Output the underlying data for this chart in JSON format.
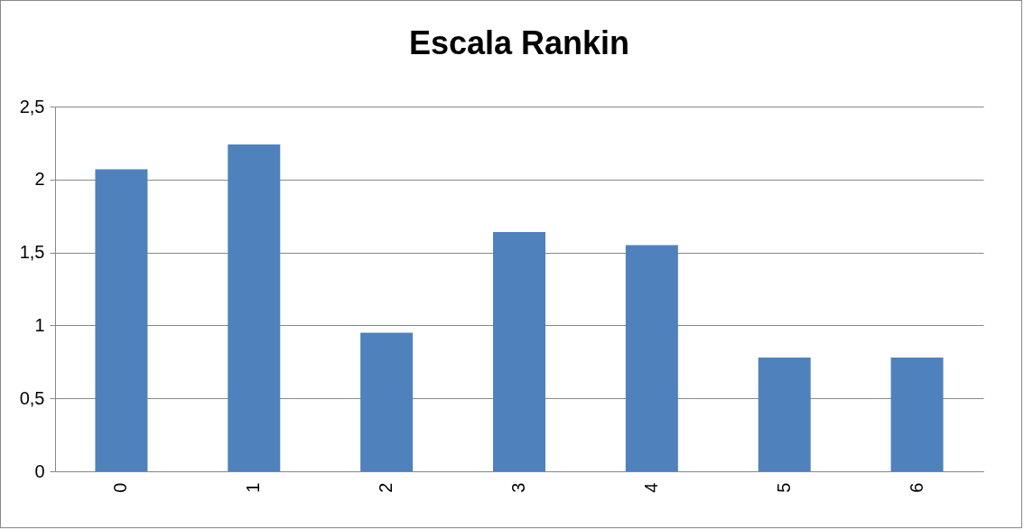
{
  "chart_data": {
    "type": "bar",
    "title": "Escala Rankin",
    "categories": [
      "0",
      "1",
      "2",
      "3",
      "4",
      "5",
      "6"
    ],
    "values": [
      2.07,
      2.24,
      0.95,
      1.64,
      1.55,
      0.78,
      0.78
    ],
    "color": "#4f81bd",
    "ylim": [
      0,
      2.5
    ],
    "yticks": [
      0,
      {
        "value": 0.5,
        "label": "0,5"
      },
      1,
      {
        "value": 1.5,
        "label": "1,5"
      },
      2,
      {
        "value": 2.5,
        "label": "2,5"
      }
    ],
    "grid": "y"
  }
}
